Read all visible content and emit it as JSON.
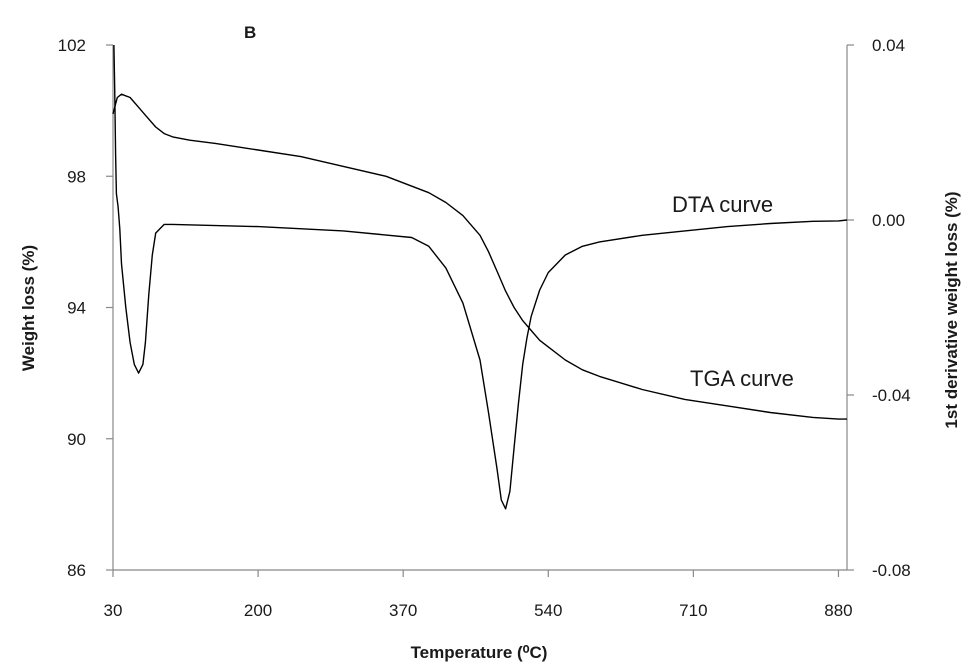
{
  "chart_data": {
    "type": "line",
    "panel_label": "B",
    "xlabel": "Temperature (⁰C)",
    "ylabel_left": "Weight loss (%)",
    "ylabel_right": "1st derivative weight loss (%)",
    "xlim": [
      30,
      890
    ],
    "ylim_left": [
      86,
      102
    ],
    "ylim_right": [
      -0.08,
      0.04
    ],
    "x_ticks": [
      "30",
      "200",
      "370",
      "540",
      "710",
      "880"
    ],
    "y_left_ticks": [
      "86",
      "90",
      "94",
      "98",
      "102"
    ],
    "y_right_ticks": [
      "-0.08",
      "-0.04",
      "0.00",
      "0.04"
    ],
    "grid": false,
    "series": [
      {
        "name": "TGA curve",
        "axis": "left",
        "x": [
          30,
          35,
          40,
          50,
          60,
          70,
          80,
          90,
          100,
          120,
          150,
          200,
          250,
          300,
          350,
          400,
          420,
          440,
          460,
          470,
          480,
          490,
          500,
          510,
          520,
          530,
          540,
          560,
          580,
          600,
          650,
          700,
          750,
          800,
          850,
          880,
          890
        ],
        "y": [
          99.9,
          100.4,
          100.5,
          100.4,
          100.1,
          99.8,
          99.5,
          99.3,
          99.2,
          99.1,
          99.0,
          98.8,
          98.6,
          98.3,
          98.0,
          97.5,
          97.2,
          96.8,
          96.2,
          95.7,
          95.1,
          94.5,
          94.0,
          93.6,
          93.3,
          93.0,
          92.8,
          92.4,
          92.1,
          91.9,
          91.5,
          91.2,
          91.0,
          90.8,
          90.65,
          90.6,
          90.6
        ]
      },
      {
        "name": "DTA curve",
        "axis": "right",
        "x": [
          31,
          32,
          33,
          34,
          36,
          38,
          40,
          45,
          50,
          55,
          60,
          65,
          68,
          72,
          76,
          80,
          85,
          90,
          95,
          100,
          200,
          300,
          380,
          400,
          420,
          440,
          460,
          470,
          480,
          485,
          490,
          495,
          500,
          505,
          510,
          515,
          520,
          530,
          540,
          560,
          580,
          600,
          650,
          700,
          750,
          800,
          850,
          880,
          890
        ],
        "y": [
          0.04,
          0.03,
          0.015,
          0.006,
          0.003,
          -0.002,
          -0.01,
          -0.02,
          -0.028,
          -0.033,
          -0.035,
          -0.033,
          -0.028,
          -0.017,
          -0.008,
          -0.003,
          -0.002,
          -0.001,
          -0.001,
          -0.001,
          -0.0015,
          -0.0025,
          -0.004,
          -0.006,
          -0.011,
          -0.019,
          -0.032,
          -0.044,
          -0.057,
          -0.064,
          -0.066,
          -0.062,
          -0.052,
          -0.042,
          -0.033,
          -0.027,
          -0.022,
          -0.016,
          -0.012,
          -0.008,
          -0.006,
          -0.005,
          -0.0035,
          -0.0025,
          -0.0015,
          -0.0008,
          -0.0003,
          -0.0002,
          0.0
        ]
      }
    ],
    "annotations": [
      {
        "text": "DTA curve",
        "series": "DTA curve"
      },
      {
        "text": "TGA curve",
        "series": "TGA curve"
      }
    ]
  }
}
